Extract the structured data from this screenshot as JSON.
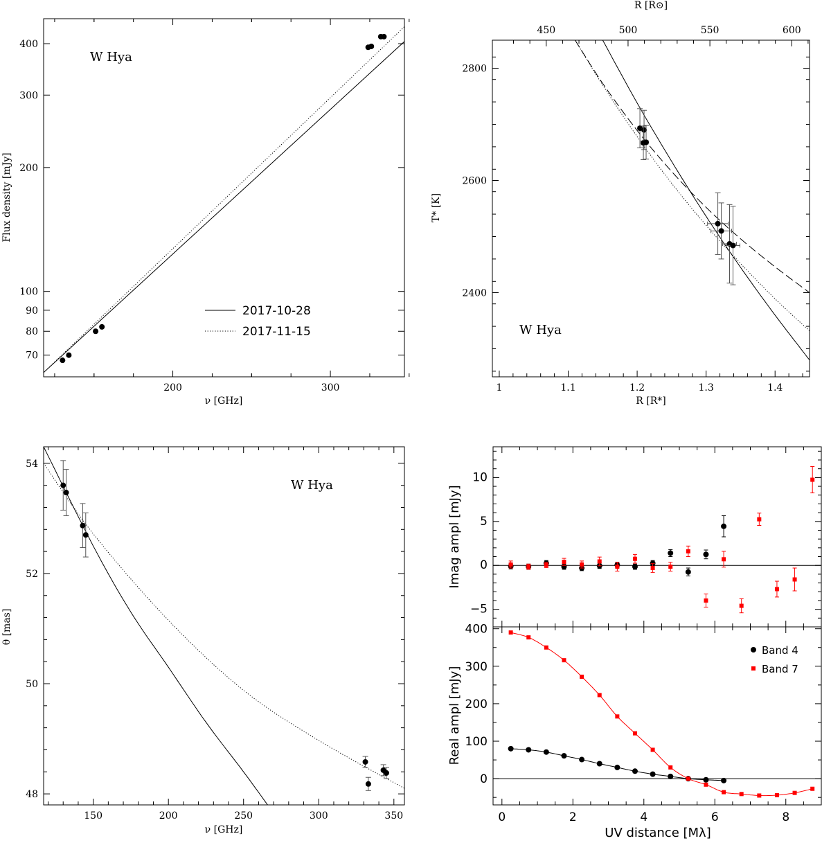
{
  "chart_data": [
    {
      "id": "flux",
      "type": "scatter",
      "xscale": "linear",
      "yscale": "log",
      "xlim": [
        118,
        347
      ],
      "ylim": [
        62,
        460
      ],
      "xticks": [
        200,
        300
      ],
      "xtick_labels": [
        "200",
        "300"
      ],
      "yticks": [
        70,
        80,
        90,
        100,
        200,
        300,
        400
      ],
      "ytick_labels": [
        "70",
        "80",
        "90",
        "100",
        "200",
        "300",
        "400"
      ],
      "xlabel": "ν [GHz]",
      "ylabel": "Flux density [mJy]",
      "annotation": "W Hya",
      "legend": {
        "entries": [
          "2017-10-28",
          "2017-11-15"
        ],
        "placement": "bottom-right"
      },
      "points": [
        {
          "x": 130,
          "y": 68
        },
        {
          "x": 134,
          "y": 70
        },
        {
          "x": 151,
          "y": 80
        },
        {
          "x": 155,
          "y": 82
        },
        {
          "x": 324,
          "y": 392
        },
        {
          "x": 326,
          "y": 394
        },
        {
          "x": 332,
          "y": 416
        },
        {
          "x": 334,
          "y": 416
        }
      ],
      "series": [
        {
          "name": "2017-10-28",
          "style": "solid",
          "x": [
            118,
            347
          ],
          "y": [
            63.5,
            405
          ]
        },
        {
          "name": "2017-11-15",
          "style": "dotted",
          "x": [
            118,
            347
          ],
          "y": [
            63.5,
            440
          ]
        }
      ]
    },
    {
      "id": "temperature",
      "type": "scatter",
      "xscale": "linear",
      "yscale": "linear",
      "xlim": [
        0.99,
        1.45
      ],
      "ylim": [
        2250,
        2850
      ],
      "xticks": [
        1,
        1.1,
        1.2,
        1.3,
        1.4
      ],
      "xtick_labels": [
        "1",
        "1.1",
        "1.2",
        "1.3",
        "1.4"
      ],
      "yticks": [
        2400,
        2600,
        2800
      ],
      "ytick_labels": [
        "2400",
        "2600",
        "2800"
      ],
      "top_axis": {
        "label": "R [R⊙]",
        "ticks": [
          450,
          500,
          550,
          600
        ],
        "tick_labels": [
          "450",
          "500",
          "550",
          "600"
        ],
        "scale": 421.3
      },
      "xlabel": "R [R*]",
      "ylabel": "T*  [K]",
      "annotation": "W Hya",
      "points": [
        {
          "x": 1.204,
          "y": 2693,
          "yerr": 35,
          "xerr": 0.003
        },
        {
          "x": 1.21,
          "y": 2690,
          "yerr": 35,
          "xerr": 0.003
        },
        {
          "x": 1.209,
          "y": 2667,
          "yerr": 30,
          "xerr": 0.003
        },
        {
          "x": 1.213,
          "y": 2668,
          "yerr": 30,
          "xerr": 0.003
        },
        {
          "x": 1.317,
          "y": 2523,
          "yerr": 55,
          "xerr": 0.015
        },
        {
          "x": 1.322,
          "y": 2510,
          "yerr": 50,
          "xerr": 0.015
        },
        {
          "x": 1.334,
          "y": 2487,
          "yerr": 70,
          "xerr": 0.01
        },
        {
          "x": 1.339,
          "y": 2484,
          "yerr": 70,
          "xerr": 0.01
        }
      ],
      "series": [
        {
          "name": "solid",
          "style": "solid",
          "x": [
            1.15,
            1.2,
            1.25,
            1.3,
            1.35,
            1.4,
            1.45
          ],
          "y": [
            2850,
            2738,
            2634,
            2536,
            2445,
            2360,
            2280
          ]
        },
        {
          "name": "dashed",
          "style": "dashed",
          "x": [
            1.11,
            1.15,
            1.2,
            1.25,
            1.3,
            1.35,
            1.4,
            1.45
          ],
          "y": [
            2850,
            2773,
            2689,
            2616,
            2552,
            2496,
            2446,
            2400
          ]
        },
        {
          "name": "dotted",
          "style": "dotted",
          "x": [
            1.11,
            1.15,
            1.2,
            1.25,
            1.3,
            1.35,
            1.4,
            1.45
          ],
          "y": [
            2850,
            2770,
            2678,
            2595,
            2520,
            2452,
            2389,
            2332
          ]
        }
      ]
    },
    {
      "id": "theta",
      "type": "scatter",
      "xscale": "linear",
      "yscale": "linear",
      "xlim": [
        117,
        357
      ],
      "ylim": [
        47.8,
        54.3
      ],
      "xticks": [
        150,
        200,
        250,
        300,
        350
      ],
      "xtick_labels": [
        "150",
        "200",
        "250",
        "300",
        "350"
      ],
      "yticks": [
        48,
        50,
        52,
        54
      ],
      "ytick_labels": [
        "48",
        "50",
        "52",
        "54"
      ],
      "xlabel": "ν [GHz]",
      "ylabel": "θ [mas]",
      "annotation": "W Hya",
      "points": [
        {
          "x": 130,
          "y": 53.6,
          "yerr": 0.45
        },
        {
          "x": 132,
          "y": 53.47,
          "yerr": 0.42
        },
        {
          "x": 143,
          "y": 52.87,
          "yerr": 0.4
        },
        {
          "x": 145,
          "y": 52.7,
          "yerr": 0.4
        },
        {
          "x": 331,
          "y": 48.58,
          "yerr": 0.1
        },
        {
          "x": 333,
          "y": 48.18,
          "yerr": 0.12
        },
        {
          "x": 343,
          "y": 48.43,
          "yerr": 0.1
        },
        {
          "x": 345,
          "y": 48.38,
          "yerr": 0.1
        }
      ],
      "series": [
        {
          "name": "solid",
          "style": "solid",
          "x": [
            117,
            150,
            175,
            200,
            225,
            250,
            266
          ],
          "y": [
            54.3,
            52.5,
            51.3,
            50.3,
            49.3,
            48.4,
            47.8
          ]
        },
        {
          "name": "dotted",
          "style": "dotted",
          "x": [
            117,
            150,
            200,
            250,
            300,
            357
          ],
          "y": [
            54.0,
            52.72,
            51.15,
            49.88,
            48.97,
            48.1
          ]
        }
      ]
    },
    {
      "id": "imag",
      "type": "scatter",
      "xscale": "linear",
      "yscale": "linear",
      "xlim": [
        -0.25,
        9.0
      ],
      "ylim": [
        -7.0,
        13.5
      ],
      "xticks": [
        0,
        2,
        4,
        6,
        8
      ],
      "yticks": [
        -5,
        0,
        5,
        10
      ],
      "ytick_labels": [
        "−5",
        "0",
        "5",
        "10"
      ],
      "ylabel": "Imag ampl [mJy]",
      "series": [
        {
          "name": "Band 4",
          "color": "#000000",
          "marker": "circle",
          "x": [
            0.25,
            0.75,
            1.25,
            1.75,
            2.25,
            2.75,
            3.25,
            3.75,
            4.25,
            4.75,
            5.25,
            5.75,
            6.25
          ],
          "y": [
            -0.1,
            -0.15,
            0.25,
            -0.15,
            -0.3,
            -0.05,
            0.05,
            -0.15,
            0.25,
            1.4,
            -0.75,
            1.25,
            4.45
          ],
          "err": [
            0.3,
            0.3,
            0.3,
            0.3,
            0.3,
            0.3,
            0.3,
            0.3,
            0.3,
            0.4,
            0.45,
            0.5,
            1.2
          ]
        },
        {
          "name": "Band 7",
          "color": "#ff0000",
          "marker": "square",
          "x": [
            0.25,
            0.75,
            1.25,
            1.75,
            2.25,
            2.75,
            3.25,
            3.75,
            4.25,
            4.75,
            5.25,
            5.75,
            6.25,
            6.75,
            7.25,
            7.75,
            8.25,
            8.75
          ],
          "y": [
            0.1,
            -0.15,
            0.05,
            0.4,
            0.1,
            0.45,
            -0.15,
            0.75,
            -0.3,
            -0.15,
            1.6,
            -4.0,
            0.7,
            -4.6,
            5.25,
            -2.7,
            -1.6,
            9.75
          ],
          "err": [
            0.4,
            0.3,
            0.3,
            0.4,
            0.4,
            0.5,
            0.5,
            0.5,
            0.5,
            0.5,
            0.6,
            0.75,
            0.9,
            0.8,
            0.7,
            0.9,
            1.3,
            1.5
          ]
        }
      ]
    },
    {
      "id": "real",
      "type": "scatter",
      "xscale": "linear",
      "yscale": "linear",
      "xlim": [
        -0.25,
        9.0
      ],
      "ylim": [
        -70,
        405
      ],
      "xticks": [
        0,
        2,
        4,
        6,
        8
      ],
      "xtick_labels": [
        "0",
        "2",
        "4",
        "6",
        "8"
      ],
      "yticks": [
        0,
        100,
        200,
        300,
        400
      ],
      "ytick_labels": [
        "0",
        "100",
        "200",
        "300",
        "400"
      ],
      "xlabel": "UV distance [Mλ]",
      "ylabel": "Real ampl [mJy]",
      "legend": {
        "entries": [
          "Band 4",
          "Band 7"
        ],
        "placement": "top-right"
      },
      "series": [
        {
          "name": "Band 4",
          "color": "#000000",
          "marker": "circle",
          "x": [
            0.25,
            0.75,
            1.25,
            1.75,
            2.25,
            2.75,
            3.25,
            3.75,
            4.25,
            4.75,
            5.25,
            5.75,
            6.25
          ],
          "y": [
            80,
            77,
            71,
            61,
            51,
            40,
            30,
            20,
            12,
            6,
            0,
            -3,
            -5
          ]
        },
        {
          "name": "Band 7",
          "color": "#ff0000",
          "marker": "square",
          "x": [
            0.25,
            0.75,
            1.25,
            1.75,
            2.25,
            2.75,
            3.25,
            3.75,
            4.25,
            4.75,
            5.25,
            5.75,
            6.25,
            6.75,
            7.25,
            7.75,
            8.25,
            8.75
          ],
          "y": [
            390,
            377,
            350,
            316,
            272,
            223,
            166,
            121,
            77,
            30,
            0,
            -16,
            -36,
            -41,
            -45,
            -44,
            -38,
            -27
          ]
        }
      ]
    }
  ]
}
